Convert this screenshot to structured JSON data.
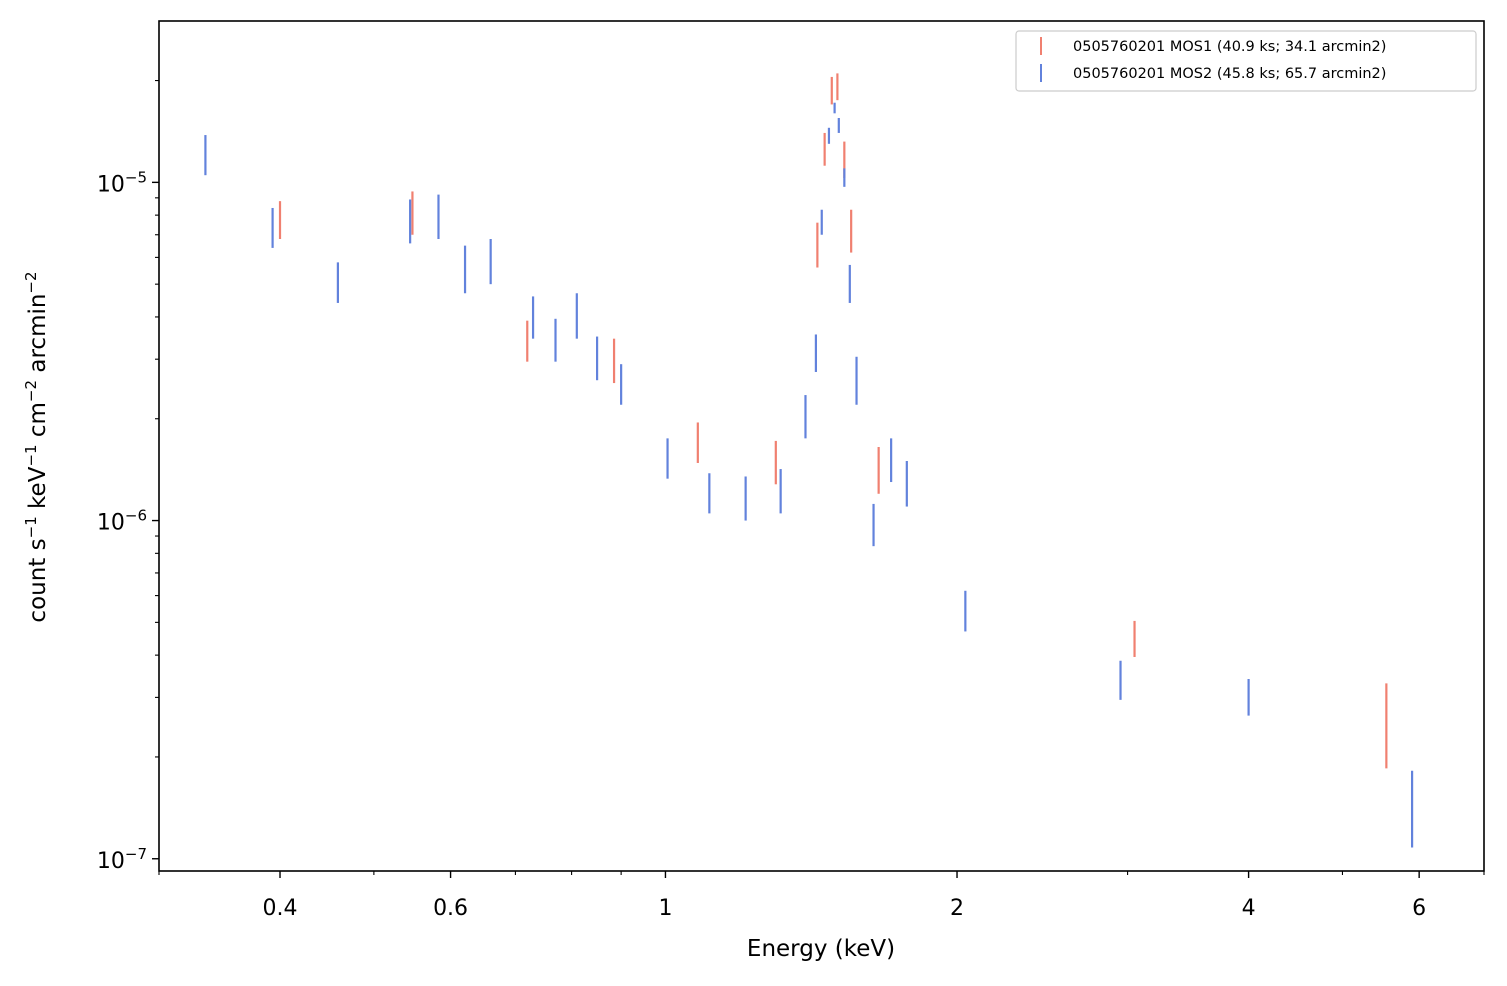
{
  "chart_data": {
    "type": "scatter",
    "title": "",
    "xlabel": "Energy (keV)",
    "ylabel_parts": {
      "a": "count s",
      "a_sup": "−1",
      "b": " keV",
      "b_sup": "−1",
      "c": " cm",
      "c_sup": "−2",
      "d": " arcmin",
      "d_sup": "−2"
    },
    "x_scale": "log",
    "y_scale": "log",
    "xlim": [
      0.3,
      7.0
    ],
    "ylim": [
      9.2e-08,
      3e-05
    ],
    "x_ticks": [
      {
        "value": 0.4,
        "label": "0.4"
      },
      {
        "value": 0.6,
        "label": "0.6"
      },
      {
        "value": 1,
        "label": "1"
      },
      {
        "value": 2,
        "label": "2"
      },
      {
        "value": 4,
        "label": "4"
      },
      {
        "value": 6,
        "label": "6"
      }
    ],
    "y_ticks": [
      {
        "value": 1e-07,
        "base": "10",
        "exp": "−7"
      },
      {
        "value": 1e-06,
        "base": "10",
        "exp": "−6"
      },
      {
        "value": 1e-05,
        "base": "10",
        "exp": "−5"
      }
    ],
    "legend_position": "top-right",
    "grid": false,
    "series": [
      {
        "name": "0505760201 MOS1 (40.9 ks; 34.1 arcmin2)",
        "color": "#f08070",
        "points": [
          {
            "x": 0.4,
            "lo": 6.8e-06,
            "hi": 8.8e-06
          },
          {
            "x": 0.548,
            "lo": 7e-06,
            "hi": 9.4e-06
          },
          {
            "x": 0.72,
            "lo": 2.95e-06,
            "hi": 3.9e-06
          },
          {
            "x": 0.885,
            "lo": 2.55e-06,
            "hi": 3.45e-06
          },
          {
            "x": 1.08,
            "lo": 1.48e-06,
            "hi": 1.95e-06
          },
          {
            "x": 1.3,
            "lo": 1.28e-06,
            "hi": 1.72e-06
          },
          {
            "x": 1.435,
            "lo": 5.6e-06,
            "hi": 7.6e-06
          },
          {
            "x": 1.46,
            "lo": 1.12e-05,
            "hi": 1.4e-05
          },
          {
            "x": 1.485,
            "lo": 1.7e-05,
            "hi": 2.05e-05
          },
          {
            "x": 1.505,
            "lo": 1.75e-05,
            "hi": 2.1e-05
          },
          {
            "x": 1.53,
            "lo": 1.03e-05,
            "hi": 1.32e-05
          },
          {
            "x": 1.555,
            "lo": 6.2e-06,
            "hi": 8.3e-06
          },
          {
            "x": 1.66,
            "lo": 1.2e-06,
            "hi": 1.65e-06
          },
          {
            "x": 3.05,
            "lo": 3.95e-07,
            "hi": 5.05e-07
          },
          {
            "x": 5.55,
            "lo": 1.85e-07,
            "hi": 3.3e-07
          }
        ]
      },
      {
        "name": "0505760201 MOS2 (45.8 ks; 65.7 arcmin2)",
        "color": "#6282dc",
        "points": [
          {
            "x": 0.335,
            "lo": 1.05e-05,
            "hi": 1.38e-05
          },
          {
            "x": 0.393,
            "lo": 6.4e-06,
            "hi": 8.4e-06
          },
          {
            "x": 0.459,
            "lo": 4.4e-06,
            "hi": 5.8e-06
          },
          {
            "x": 0.545,
            "lo": 6.6e-06,
            "hi": 8.9e-06
          },
          {
            "x": 0.583,
            "lo": 6.8e-06,
            "hi": 9.2e-06
          },
          {
            "x": 0.621,
            "lo": 4.7e-06,
            "hi": 6.5e-06
          },
          {
            "x": 0.66,
            "lo": 5e-06,
            "hi": 6.8e-06
          },
          {
            "x": 0.73,
            "lo": 3.45e-06,
            "hi": 4.6e-06
          },
          {
            "x": 0.77,
            "lo": 2.95e-06,
            "hi": 3.95e-06
          },
          {
            "x": 0.81,
            "lo": 3.45e-06,
            "hi": 4.7e-06
          },
          {
            "x": 0.85,
            "lo": 2.6e-06,
            "hi": 3.5e-06
          },
          {
            "x": 0.9,
            "lo": 2.2e-06,
            "hi": 2.9e-06
          },
          {
            "x": 1.005,
            "lo": 1.33e-06,
            "hi": 1.75e-06
          },
          {
            "x": 1.11,
            "lo": 1.05e-06,
            "hi": 1.38e-06
          },
          {
            "x": 1.21,
            "lo": 1e-06,
            "hi": 1.35e-06
          },
          {
            "x": 1.315,
            "lo": 1.05e-06,
            "hi": 1.42e-06
          },
          {
            "x": 1.395,
            "lo": 1.75e-06,
            "hi": 2.35e-06
          },
          {
            "x": 1.43,
            "lo": 2.75e-06,
            "hi": 3.55e-06
          },
          {
            "x": 1.45,
            "lo": 7e-06,
            "hi": 8.3e-06
          },
          {
            "x": 1.475,
            "lo": 1.3e-05,
            "hi": 1.45e-05
          },
          {
            "x": 1.495,
            "lo": 1.6e-05,
            "hi": 1.72e-05
          },
          {
            "x": 1.51,
            "lo": 1.4e-05,
            "hi": 1.55e-05
          },
          {
            "x": 1.53,
            "lo": 9.7e-06,
            "hi": 1.1e-05
          },
          {
            "x": 1.55,
            "lo": 4.4e-06,
            "hi": 5.7e-06
          },
          {
            "x": 1.575,
            "lo": 2.2e-06,
            "hi": 3.05e-06
          },
          {
            "x": 1.64,
            "lo": 8.4e-07,
            "hi": 1.12e-06
          },
          {
            "x": 1.71,
            "lo": 1.3e-06,
            "hi": 1.75e-06
          },
          {
            "x": 1.775,
            "lo": 1.1e-06,
            "hi": 1.5e-06
          },
          {
            "x": 2.04,
            "lo": 4.7e-07,
            "hi": 6.2e-07
          },
          {
            "x": 2.95,
            "lo": 2.95e-07,
            "hi": 3.85e-07
          },
          {
            "x": 4.0,
            "lo": 2.65e-07,
            "hi": 3.4e-07
          },
          {
            "x": 5.9,
            "lo": 1.08e-07,
            "hi": 1.82e-07
          }
        ]
      }
    ]
  }
}
